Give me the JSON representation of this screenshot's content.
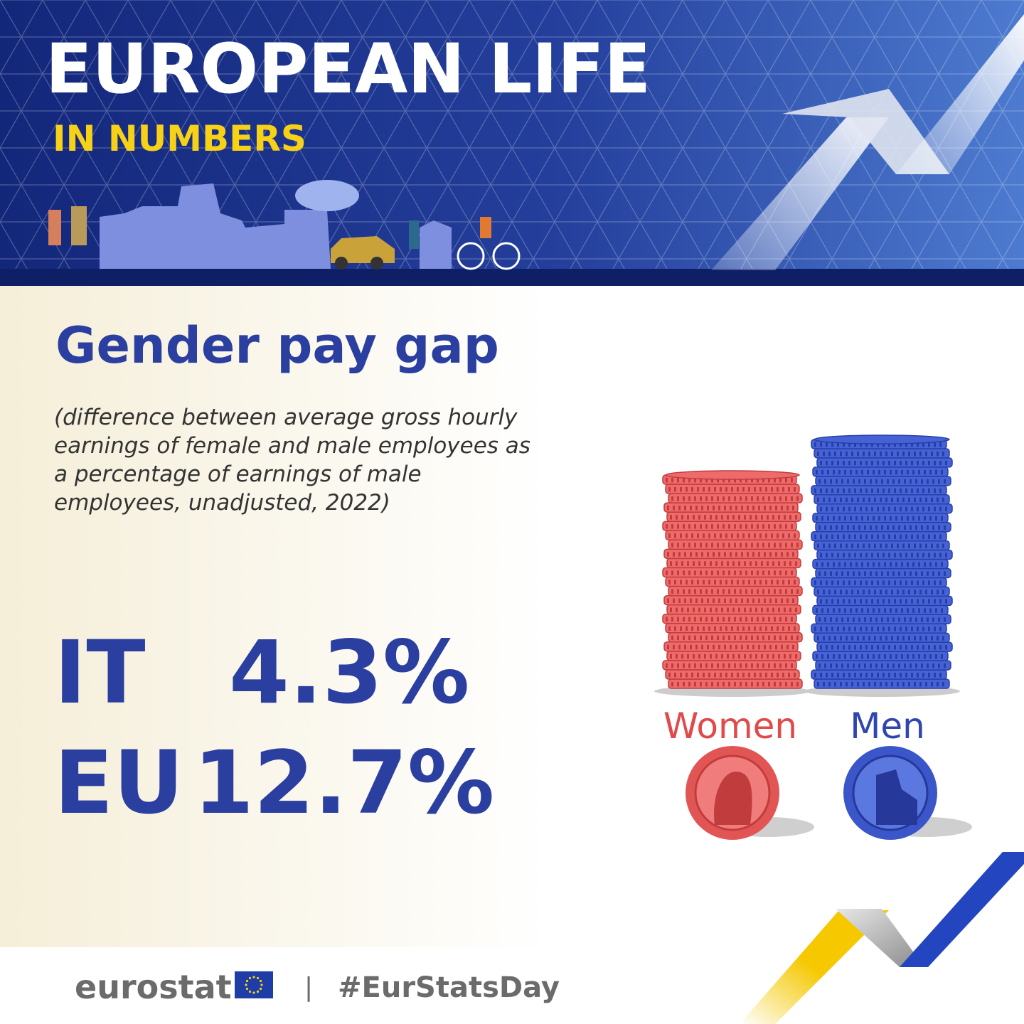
{
  "header": {
    "title": "EUROPEAN LIFE",
    "subtitle": "IN NUMBERS"
  },
  "title": "Gender pay gap",
  "description": [
    "(difference between average gross hourly",
    "earnings of female and male employees as",
    "a percentage of earnings of male",
    "employees, unadjusted, 2022)"
  ],
  "figures": [
    {
      "label": "IT",
      "value": "4.3%"
    },
    {
      "label": "EU",
      "value": "12.7%"
    }
  ],
  "illustration": {
    "labels": [
      "Women",
      "Men"
    ]
  },
  "footer": {
    "brand": "eurostat",
    "separator": "|",
    "hashtag": "#EurStatsDay"
  }
}
